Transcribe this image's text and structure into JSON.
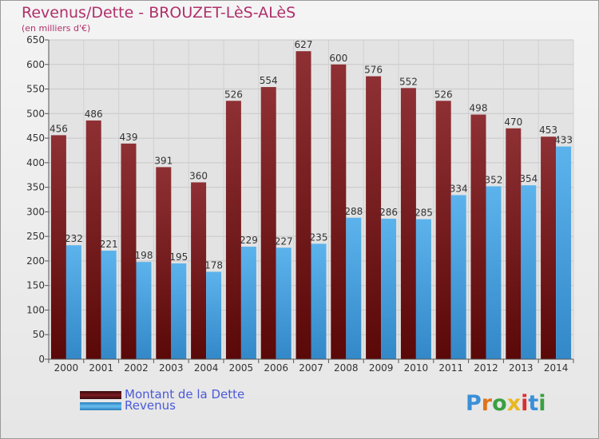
{
  "title": "Revenus/Dette - BROUZET-LèS-ALèS",
  "subtitle": "(en milliers d'€)",
  "logo": "Proxiti",
  "colors": {
    "dette": "#7a1e22",
    "revenus": "#4ea6e3",
    "title": "#b0306a",
    "legend_text": "#4a5ad8"
  },
  "chart_data": {
    "type": "bar",
    "categories": [
      "2000",
      "2001",
      "2002",
      "2003",
      "2004",
      "2005",
      "2006",
      "2007",
      "2008",
      "2009",
      "2010",
      "2011",
      "2012",
      "2013",
      "2014"
    ],
    "series": [
      {
        "name": "Montant de la Dette",
        "values": [
          456,
          486,
          439,
          391,
          360,
          526,
          554,
          627,
          600,
          576,
          552,
          526,
          498,
          470,
          453
        ]
      },
      {
        "name": "Revenus",
        "values": [
          232,
          221,
          198,
          195,
          178,
          229,
          227,
          235,
          288,
          286,
          285,
          334,
          352,
          354,
          433
        ]
      }
    ],
    "ylim": [
      0,
      650
    ],
    "yticks": [
      0,
      50,
      100,
      150,
      200,
      250,
      300,
      350,
      400,
      450,
      500,
      550,
      600,
      650
    ],
    "grid": true,
    "legend_position": "bottom-left"
  }
}
